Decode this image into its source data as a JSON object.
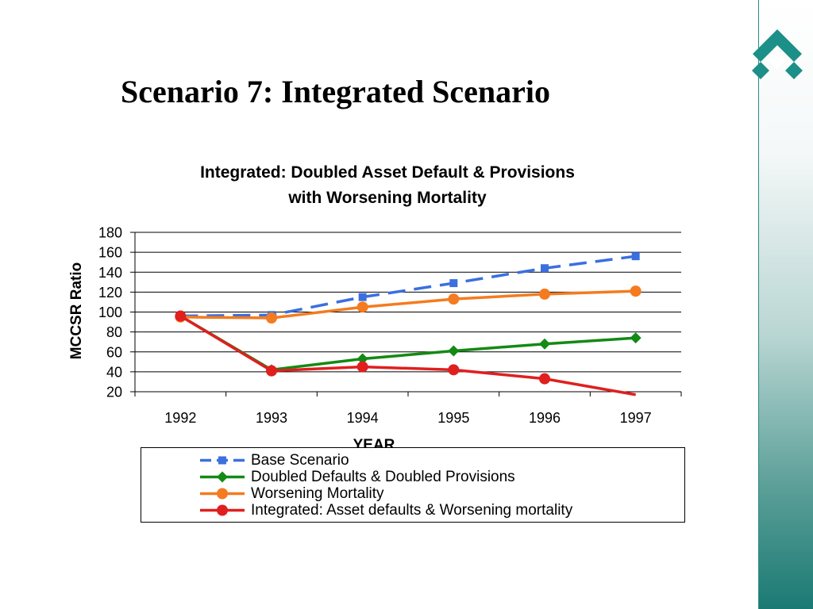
{
  "slide": {
    "title": "Scenario 7: Integrated Scenario",
    "logo_icon": "teal-diamond-logo-icon"
  },
  "colors": {
    "base": "#3b6fe0",
    "doubled": "#138a13",
    "worsening": "#f47b20",
    "integrated": "#e01f1f",
    "band": "#1a7a73"
  },
  "chart_data": {
    "type": "line",
    "title": "Integrated: Doubled Asset Default & Provisions with Worsening Mortality",
    "title_lines": [
      "Integrated: Doubled Asset Default & Provisions",
      "with Worsening Mortality"
    ],
    "xlabel": "YEAR",
    "ylabel": "MCCSR Ratio",
    "categories": [
      "1992",
      "1993",
      "1994",
      "1995",
      "1996",
      "1997"
    ],
    "ylim": [
      20,
      180
    ],
    "yticks": [
      20,
      40,
      60,
      80,
      100,
      120,
      140,
      160,
      180
    ],
    "grid": true,
    "legend_position": "bottom",
    "series": [
      {
        "name": "Base Scenario",
        "color": "#3b6fe0",
        "marker": "square",
        "dash": true,
        "values": [
          96,
          97,
          115,
          129,
          144,
          156
        ]
      },
      {
        "name": "Doubled Defaults & Doubled Provisions",
        "color": "#138a13",
        "marker": "diamond",
        "dash": false,
        "values": [
          96,
          42,
          53,
          61,
          68,
          74
        ]
      },
      {
        "name": "Worsening Mortality",
        "color": "#f47b20",
        "marker": "circle",
        "dash": false,
        "values": [
          95,
          94,
          105,
          113,
          118,
          121
        ]
      },
      {
        "name": "Integrated: Asset defaults & Worsening mortality",
        "color": "#e01f1f",
        "marker": "circle",
        "dash": false,
        "values": [
          96,
          41,
          45,
          42,
          33,
          17
        ],
        "last_marker_hidden": true
      }
    ]
  }
}
